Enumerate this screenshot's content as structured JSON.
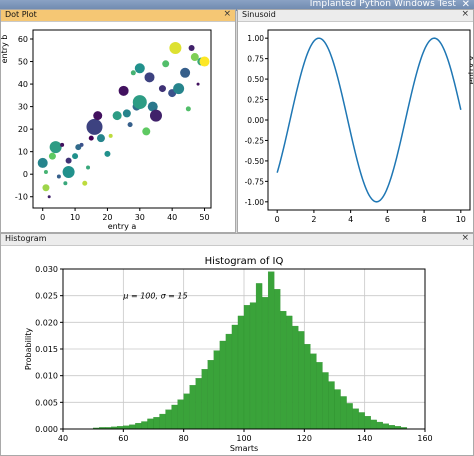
{
  "window": {
    "title": "Implanted Python Windows Test",
    "close_icon": "close-icon"
  },
  "panels": {
    "dot_plot": {
      "tab_label": "Dot Plot",
      "close_label": "×"
    },
    "sinusoid": {
      "tab_label": "Sinusoid",
      "close_label": "×"
    },
    "histogram": {
      "tab_label": "Histogram",
      "close_label": "×"
    }
  },
  "chart_data": [
    {
      "type": "scatter",
      "xlabel": "entry a",
      "ylabel": "entry b",
      "xlim": [
        -3,
        52
      ],
      "ylim": [
        -15,
        64
      ],
      "x_ticks": [
        "0",
        "10",
        "20",
        "30",
        "40",
        "50"
      ],
      "y_ticks": [
        "-10",
        "0",
        "10",
        "20",
        "30",
        "40",
        "50",
        "60"
      ],
      "color_scale": "viridis",
      "points": [
        {
          "x": 0,
          "y": 5,
          "s": 5,
          "c": 0.45
        },
        {
          "x": 1,
          "y": -6,
          "s": 3.5,
          "c": 0.85
        },
        {
          "x": 1,
          "y": 1,
          "s": 2,
          "c": 0.65
        },
        {
          "x": 2,
          "y": -10,
          "s": 1.5,
          "c": 0.1
        },
        {
          "x": 3,
          "y": 8,
          "s": 3.5,
          "c": 0.75
        },
        {
          "x": 4,
          "y": 12,
          "s": 6,
          "c": 0.55
        },
        {
          "x": 5,
          "y": -1,
          "s": 2,
          "c": 0.3
        },
        {
          "x": 6,
          "y": 13,
          "s": 2,
          "c": 0.05
        },
        {
          "x": 7,
          "y": -4,
          "s": 2,
          "c": 0.6
        },
        {
          "x": 8,
          "y": 6,
          "s": 3,
          "c": 0.15
        },
        {
          "x": 8,
          "y": 1,
          "s": 6,
          "c": 0.5
        },
        {
          "x": 10,
          "y": 8,
          "s": 3,
          "c": 0.5
        },
        {
          "x": 11,
          "y": 12,
          "s": 3,
          "c": 0.35
        },
        {
          "x": 12,
          "y": 13,
          "s": 2,
          "c": 0.25
        },
        {
          "x": 13,
          "y": -4,
          "s": 2.5,
          "c": 0.9
        },
        {
          "x": 14,
          "y": 3,
          "s": 2,
          "c": 0.6
        },
        {
          "x": 15,
          "y": 16,
          "s": 2.5,
          "c": 0.0
        },
        {
          "x": 16,
          "y": 21,
          "s": 8,
          "c": 0.2
        },
        {
          "x": 17,
          "y": 26,
          "s": 4.5,
          "c": 0.05
        },
        {
          "x": 18,
          "y": 16,
          "s": 4,
          "c": 0.45
        },
        {
          "x": 20,
          "y": 9,
          "s": 3,
          "c": 0.5
        },
        {
          "x": 21,
          "y": 17,
          "s": 2,
          "c": 0.9
        },
        {
          "x": 23,
          "y": 26,
          "s": 4.5,
          "c": 0.55
        },
        {
          "x": 25,
          "y": 37,
          "s": 5,
          "c": 0.05
        },
        {
          "x": 26,
          "y": 27,
          "s": 4,
          "c": 0.45
        },
        {
          "x": 27,
          "y": 22,
          "s": 2.5,
          "c": 0.3
        },
        {
          "x": 28,
          "y": 45,
          "s": 2.5,
          "c": 0.65
        },
        {
          "x": 29,
          "y": 30,
          "s": 4,
          "c": 0.35
        },
        {
          "x": 30,
          "y": 47,
          "s": 5,
          "c": 0.5
        },
        {
          "x": 30,
          "y": 32,
          "s": 7,
          "c": 0.55
        },
        {
          "x": 32,
          "y": 19,
          "s": 4,
          "c": 0.75
        },
        {
          "x": 33,
          "y": 43,
          "s": 5,
          "c": 0.2
        },
        {
          "x": 34,
          "y": 30,
          "s": 5,
          "c": 0.4
        },
        {
          "x": 35,
          "y": 26,
          "s": 6,
          "c": 0.1
        },
        {
          "x": 37,
          "y": 38,
          "s": 3.5,
          "c": 0.15
        },
        {
          "x": 38,
          "y": 49,
          "s": 3.5,
          "c": 0.7
        },
        {
          "x": 40,
          "y": 36,
          "s": 4,
          "c": 0.25
        },
        {
          "x": 41,
          "y": 56,
          "s": 6,
          "c": 0.95
        },
        {
          "x": 42,
          "y": 38,
          "s": 5.5,
          "c": 0.45
        },
        {
          "x": 44,
          "y": 45,
          "s": 5,
          "c": 0.3
        },
        {
          "x": 45,
          "y": 29,
          "s": 2.5,
          "c": 0.7
        },
        {
          "x": 46,
          "y": 56,
          "s": 3,
          "c": 0.1
        },
        {
          "x": 47,
          "y": 52,
          "s": 4,
          "c": 0.8
        },
        {
          "x": 48,
          "y": 40,
          "s": 1.5,
          "c": 0.05
        },
        {
          "x": 49,
          "y": 50,
          "s": 4,
          "c": 0.6
        },
        {
          "x": 50,
          "y": 50,
          "s": 5,
          "c": 1.0
        }
      ]
    },
    {
      "type": "line",
      "xlim": [
        -0.5,
        10.5
      ],
      "ylim": [
        -1.1,
        1.1
      ],
      "x_ticks": [
        "0",
        "2",
        "4",
        "6",
        "8",
        "10"
      ],
      "y_ticks": [
        "-1.00",
        "-0.75",
        "-0.50",
        "-0.25",
        "0.00",
        "0.25",
        "0.50",
        "0.75",
        "1.00"
      ],
      "ylabel": "entry y",
      "function": "sin(x - 0.7)",
      "x_range": [
        0,
        10
      ],
      "line_color": "#1f77b4"
    },
    {
      "type": "bar",
      "title": "Histogram of IQ",
      "xlabel": "Smarts",
      "ylabel": "Probability",
      "annotation": "μ = 100,  σ = 15",
      "xlim": [
        40,
        160
      ],
      "ylim": [
        0,
        0.03
      ],
      "x_ticks": [
        "40",
        "60",
        "80",
        "100",
        "120",
        "140",
        "160"
      ],
      "y_ticks": [
        "0.000",
        "0.005",
        "0.010",
        "0.015",
        "0.020",
        "0.025",
        "0.030"
      ],
      "bar_color": "#3aa33a",
      "bin_start": 50,
      "bin_width": 2,
      "values": [
        0.0002,
        0.0003,
        0.0003,
        0.0004,
        0.0005,
        0.0006,
        0.0008,
        0.0011,
        0.0014,
        0.0019,
        0.0022,
        0.0028,
        0.0036,
        0.0045,
        0.0055,
        0.0066,
        0.0082,
        0.0095,
        0.0112,
        0.0129,
        0.0147,
        0.0165,
        0.0178,
        0.0195,
        0.0212,
        0.0232,
        0.0237,
        0.0273,
        0.0247,
        0.0295,
        0.0262,
        0.0221,
        0.0212,
        0.0193,
        0.0183,
        0.0159,
        0.0141,
        0.0125,
        0.0106,
        0.0089,
        0.0074,
        0.0061,
        0.0048,
        0.0038,
        0.0031,
        0.0024,
        0.0017,
        0.0013,
        0.001,
        0.0007,
        0.0005,
        0.0003
      ]
    }
  ]
}
